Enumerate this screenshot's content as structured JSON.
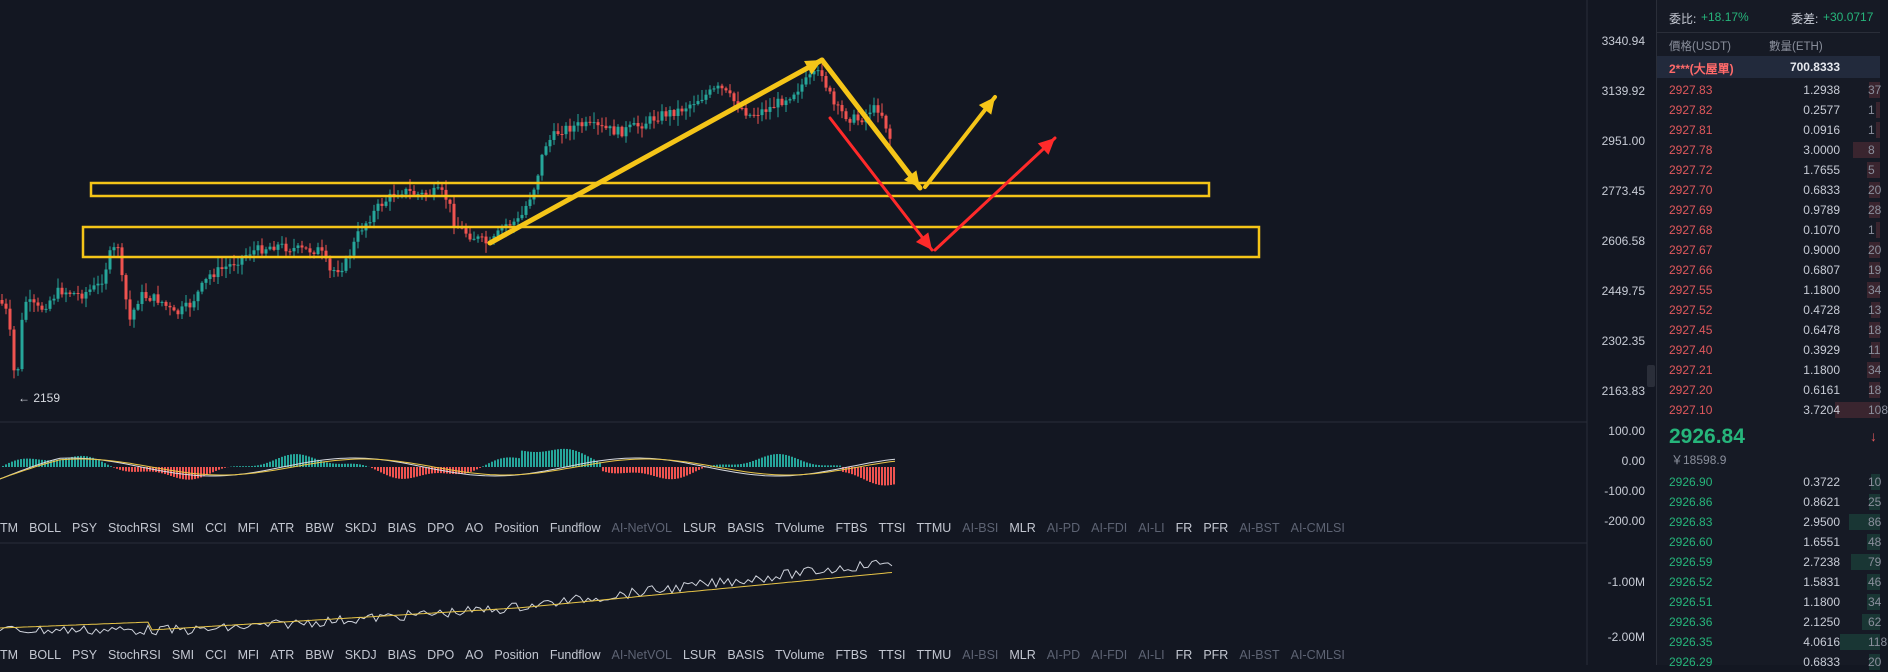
{
  "price_axis": [
    "3340.94",
    "3139.92",
    "2951.00",
    "2773.45",
    "2606.58",
    "2449.75",
    "2302.35",
    "2163.83"
  ],
  "macd_axis": [
    "100.00",
    "0.00",
    "-100.00",
    "-200.00"
  ],
  "obv_axis": [
    "-1.00M",
    "-2.00M"
  ],
  "low_marker": "← 2159",
  "indicators": [
    {
      "label": "TM",
      "ai": false
    },
    {
      "label": "BOLL",
      "ai": false
    },
    {
      "label": "PSY",
      "ai": false
    },
    {
      "label": "StochRSI",
      "ai": false
    },
    {
      "label": "SMI",
      "ai": false
    },
    {
      "label": "CCI",
      "ai": false
    },
    {
      "label": "MFI",
      "ai": false
    },
    {
      "label": "ATR",
      "ai": false
    },
    {
      "label": "BBW",
      "ai": false
    },
    {
      "label": "SKDJ",
      "ai": false
    },
    {
      "label": "BIAS",
      "ai": false
    },
    {
      "label": "DPO",
      "ai": false
    },
    {
      "label": "AO",
      "ai": false
    },
    {
      "label": "Position",
      "ai": false
    },
    {
      "label": "Fundflow",
      "ai": false
    },
    {
      "label": "AI-NetVOL",
      "ai": true
    },
    {
      "label": "LSUR",
      "ai": false
    },
    {
      "label": "BASIS",
      "ai": false
    },
    {
      "label": "TVolume",
      "ai": false
    },
    {
      "label": "FTBS",
      "ai": false
    },
    {
      "label": "TTSI",
      "ai": false
    },
    {
      "label": "TTMU",
      "ai": false
    },
    {
      "label": "AI-BSI",
      "ai": true
    },
    {
      "label": "MLR",
      "ai": false
    },
    {
      "label": "AI-PD",
      "ai": true
    },
    {
      "label": "AI-FDI",
      "ai": true
    },
    {
      "label": "AI-LI",
      "ai": true
    },
    {
      "label": "FR",
      "ai": false
    },
    {
      "label": "PFR",
      "ai": false
    },
    {
      "label": "AI-BST",
      "ai": true
    },
    {
      "label": "AI-CMLSI",
      "ai": true
    }
  ],
  "orderbook": {
    "ratio_label": "委比:",
    "ratio_value": "+18.17%",
    "diff_label": "委差:",
    "diff_value": "+30.0717",
    "col_price": "價格(USDT)",
    "col_qty": "數量(ETH)",
    "big_order_label": "2***(大屋單)",
    "big_order_qty": "700.8333",
    "asks": [
      {
        "price": "2927.83",
        "qty": "1.2938",
        "extra": "37",
        "depth": 0.05
      },
      {
        "price": "2927.82",
        "qty": "0.2577",
        "extra": "1",
        "depth": 0.02
      },
      {
        "price": "2927.81",
        "qty": "0.0916",
        "extra": "1",
        "depth": 0.02
      },
      {
        "price": "2927.78",
        "qty": "3.0000",
        "extra": "8",
        "depth": 0.12
      },
      {
        "price": "2927.72",
        "qty": "1.7655",
        "extra": "5",
        "depth": 0.06
      },
      {
        "price": "2927.70",
        "qty": "0.6833",
        "extra": "20",
        "depth": 0.05
      },
      {
        "price": "2927.69",
        "qty": "0.9789",
        "extra": "28",
        "depth": 0.05
      },
      {
        "price": "2927.68",
        "qty": "0.1070",
        "extra": "1",
        "depth": 0.02
      },
      {
        "price": "2927.67",
        "qty": "0.9000",
        "extra": "20",
        "depth": 0.05
      },
      {
        "price": "2927.66",
        "qty": "0.6807",
        "extra": "19",
        "depth": 0.05
      },
      {
        "price": "2927.55",
        "qty": "1.1800",
        "extra": "34",
        "depth": 0.06
      },
      {
        "price": "2927.52",
        "qty": "0.4728",
        "extra": "13",
        "depth": 0.04
      },
      {
        "price": "2927.45",
        "qty": "0.6478",
        "extra": "18",
        "depth": 0.05
      },
      {
        "price": "2927.40",
        "qty": "0.3929",
        "extra": "11",
        "depth": 0.04
      },
      {
        "price": "2927.21",
        "qty": "1.1800",
        "extra": "34",
        "depth": 0.06
      },
      {
        "price": "2927.20",
        "qty": "0.6161",
        "extra": "18",
        "depth": 0.05
      },
      {
        "price": "2927.10",
        "qty": "3.7204",
        "extra": "108",
        "depth": 0.2
      }
    ],
    "last_price": "2926.84",
    "last_price_cny": "￥18598.9",
    "bids": [
      {
        "price": "2926.90",
        "qty": "0.3722",
        "extra": "10",
        "depth": 0.04
      },
      {
        "price": "2926.86",
        "qty": "0.8621",
        "extra": "25",
        "depth": 0.05
      },
      {
        "price": "2926.83",
        "qty": "2.9500",
        "extra": "86",
        "depth": 0.14
      },
      {
        "price": "2926.60",
        "qty": "1.6551",
        "extra": "48",
        "depth": 0.06
      },
      {
        "price": "2926.59",
        "qty": "2.7238",
        "extra": "79",
        "depth": 0.13
      },
      {
        "price": "2926.52",
        "qty": "1.5831",
        "extra": "46",
        "depth": 0.06
      },
      {
        "price": "2926.51",
        "qty": "1.1800",
        "extra": "34",
        "depth": 0.06
      },
      {
        "price": "2926.36",
        "qty": "2.1250",
        "extra": "62",
        "depth": 0.08
      },
      {
        "price": "2926.35",
        "qty": "4.0616",
        "extra": "118",
        "depth": 0.18
      },
      {
        "price": "2926.29",
        "qty": "0.6833",
        "extra": "20",
        "depth": 0.05
      }
    ]
  },
  "colors": {
    "up": "#26a69a",
    "down": "#ef5350",
    "annotation_yellow": "#f5c518",
    "annotation_red": "#ff2a2a",
    "background": "#131722"
  }
}
